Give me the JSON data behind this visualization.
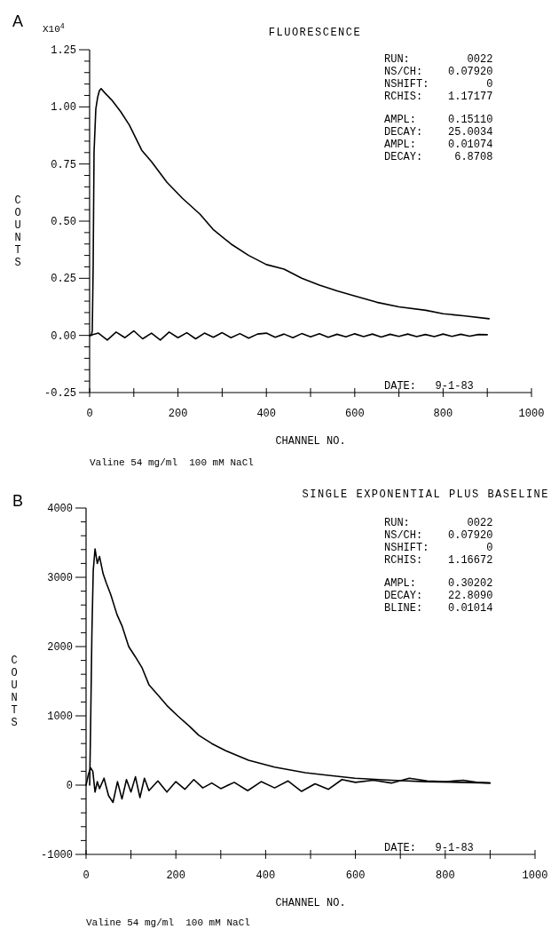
{
  "chart_data": [
    {
      "type": "line",
      "title": "FLUORESCENCE",
      "xlabel": "CHANNEL NO.",
      "ylabel": "COUNTS",
      "grid": false,
      "marker": "none",
      "line_style": "solid",
      "annotations": [
        "A",
        "X10$^{4}$",
        "RUN:         0022",
        "NS/CH:    0.07920",
        "NSHIFT:         0",
        "RCHIS:    1.17177",
        "AMPL:     0.15110",
        "DECAY:    25.0034",
        "AMPL:     0.01074",
        "DECAY:     6.8708",
        "DATE:   9-1-83",
        "Valine 54 mg/ml  100 mM NaCl"
      ],
      "xlim": [
        0,
        1000
      ],
      "xticks": [
        0,
        {
          "value": 100,
          "label": null
        },
        200,
        {
          "value": 300,
          "label": null
        },
        400,
        {
          "value": 500,
          "label": null
        },
        600,
        {
          "value": 700,
          "label": null
        },
        800,
        {
          "value": 900,
          "label": null
        },
        1000
      ],
      "ylim": [
        -0.25,
        1.25
      ],
      "yticks": [
        {
          "value": -0.25,
          "label": "-0.25"
        },
        {
          "value": -0.2,
          "label": null
        },
        {
          "value": -0.15,
          "label": null
        },
        {
          "value": -0.1,
          "label": null
        },
        {
          "value": -0.05,
          "label": null
        },
        {
          "value": 0,
          "label": "0.00"
        },
        {
          "value": 0.05,
          "label": null
        },
        {
          "value": 0.1,
          "label": null
        },
        {
          "value": 0.15,
          "label": null
        },
        {
          "value": 0.2,
          "label": null
        },
        {
          "value": 0.25,
          "label": "0.25"
        },
        {
          "value": 0.3,
          "label": null
        },
        {
          "value": 0.35,
          "label": null
        },
        {
          "value": 0.4,
          "label": null
        },
        {
          "value": 0.45,
          "label": null
        },
        {
          "value": 0.5,
          "label": "0.50"
        },
        {
          "value": 0.55,
          "label": null
        },
        {
          "value": 0.6,
          "label": null
        },
        {
          "value": 0.65,
          "label": null
        },
        {
          "value": 0.7,
          "label": null
        },
        {
          "value": 0.75,
          "label": "0.75"
        },
        {
          "value": 0.8,
          "label": null
        },
        {
          "value": 0.85,
          "label": null
        },
        {
          "value": 0.9,
          "label": null
        },
        {
          "value": 0.95,
          "label": null
        },
        {
          "value": 1,
          "label": "1.00"
        },
        {
          "value": 1.05,
          "label": null
        },
        {
          "value": 1.1,
          "label": null
        },
        {
          "value": 1.15,
          "label": null
        },
        {
          "value": 1.2,
          "label": null
        },
        {
          "value": 1.25,
          "label": "1.25"
        }
      ],
      "series": [
        {
          "color": "#000000",
          "x": [
            0,
            4,
            6,
            8,
            10,
            14,
            18,
            22,
            26,
            35,
            50,
            70,
            90,
            118,
            140,
            175,
            210,
            250,
            279,
            320,
            360,
            400,
            440,
            480,
            520,
            560,
            600,
            650,
            700,
            761,
            800,
            850,
            904
          ],
          "values": [
            0,
            0,
            0.02,
            0.3,
            0.8,
            0.99,
            1.04,
            1.07,
            1.08,
            1.06,
            1.03,
            0.98,
            0.92,
            0.81,
            0.76,
            0.67,
            0.6,
            0.53,
            0.465,
            0.4,
            0.35,
            0.31,
            0.29,
            0.25,
            0.22,
            0.195,
            0.173,
            0.145,
            0.125,
            0.11,
            0.095,
            0.085,
            0.073
          ]
        },
        {
          "color": "#000000",
          "x": [
            0,
            20,
            40,
            60,
            80,
            100,
            120,
            140,
            160,
            180,
            200,
            220,
            240,
            260,
            280,
            300,
            320,
            340,
            360,
            380,
            400,
            420,
            440,
            460,
            480,
            500,
            520,
            540,
            560,
            580,
            600,
            620,
            640,
            660,
            680,
            700,
            720,
            740,
            760,
            780,
            800,
            820,
            840,
            860,
            880,
            900
          ],
          "values": [
            0,
            0.01,
            -0.02,
            0.015,
            -0.01,
            0.02,
            -0.015,
            0.01,
            -0.02,
            0.015,
            -0.01,
            0.012,
            -0.015,
            0.01,
            -0.008,
            0.012,
            -0.01,
            0.008,
            -0.012,
            0.006,
            0.01,
            -0.008,
            0.006,
            -0.01,
            0.008,
            -0.006,
            0.007,
            -0.008,
            0.005,
            -0.006,
            0.007,
            -0.005,
            0.006,
            -0.007,
            0.005,
            -0.004,
            0.006,
            -0.005,
            0.004,
            -0.005,
            0.006,
            -0.004,
            0.005,
            -0.003,
            0.004,
            0.003
          ]
        }
      ]
    },
    {
      "type": "line",
      "title": "SINGLE EXPONENTIAL PLUS BASELINE",
      "xlabel": "CHANNEL NO.",
      "ylabel": "COUNTS",
      "grid": false,
      "marker": "none",
      "line_style": "solid",
      "annotations": [
        "B",
        "RUN:         0022",
        "NS/CH:    0.07920",
        "NSHIFT:         0",
        "RCHIS:    1.16672",
        "AMPL:     0.30202",
        "DECAY:    22.8090",
        "BLINE:    0.01014",
        "DATE:   9-1-83",
        "Valine 54 mg/ml  100 mM NaCl"
      ],
      "xlim": [
        0,
        1000
      ],
      "xticks": [
        0,
        {
          "value": 100,
          "label": null
        },
        200,
        {
          "value": 300,
          "label": null
        },
        400,
        {
          "value": 500,
          "label": null
        },
        600,
        {
          "value": 700,
          "label": null
        },
        800,
        {
          "value": 900,
          "label": null
        },
        1000
      ],
      "ylim": [
        -1000,
        4000
      ],
      "yticks": [
        -1000,
        {
          "value": -800,
          "label": null
        },
        {
          "value": -600,
          "label": null
        },
        {
          "value": -400,
          "label": null
        },
        {
          "value": -200,
          "label": null
        },
        0,
        {
          "value": 200,
          "label": null
        },
        {
          "value": 400,
          "label": null
        },
        {
          "value": 600,
          "label": null
        },
        {
          "value": 800,
          "label": null
        },
        1000,
        {
          "value": 1200,
          "label": null
        },
        {
          "value": 1400,
          "label": null
        },
        {
          "value": 1600,
          "label": null
        },
        {
          "value": 1800,
          "label": null
        },
        2000,
        {
          "value": 2200,
          "label": null
        },
        {
          "value": 2400,
          "label": null
        },
        {
          "value": 2600,
          "label": null
        },
        {
          "value": 2800,
          "label": null
        },
        3000,
        {
          "value": 3200,
          "label": null
        },
        {
          "value": 3400,
          "label": null
        },
        {
          "value": 3600,
          "label": null
        },
        {
          "value": 3800,
          "label": null
        },
        4000
      ],
      "series": [
        {
          "color": "#000000",
          "x": [
            8,
            10,
            13,
            16,
            20,
            25,
            30,
            38,
            45,
            55,
            69,
            80,
            95,
            110,
            125,
            140,
            160,
            180,
            204,
            230,
            251,
            280,
            310,
            362,
            420,
            488,
            540,
            599,
            680,
            757,
            830,
            899
          ],
          "values": [
            0,
            800,
            2200,
            3100,
            3410,
            3200,
            3300,
            3050,
            2920,
            2750,
            2460,
            2300,
            2000,
            1850,
            1690,
            1450,
            1300,
            1150,
            1000,
            850,
            720,
            600,
            500,
            360,
            260,
            180,
            140,
            100,
            70,
            50,
            40,
            30
          ]
        },
        {
          "color": "#000000",
          "x": [
            0,
            5,
            10,
            15,
            20,
            25,
            30,
            40,
            50,
            60,
            70,
            80,
            90,
            100,
            110,
            120,
            130,
            140,
            160,
            180,
            200,
            220,
            240,
            260,
            280,
            300,
            330,
            360,
            390,
            420,
            450,
            480,
            510,
            540,
            570,
            600,
            640,
            680,
            720,
            760,
            800,
            840,
            870,
            900
          ],
          "values": [
            0,
            150,
            250,
            200,
            -100,
            50,
            -50,
            100,
            -150,
            -250,
            50,
            -200,
            80,
            -100,
            120,
            -180,
            100,
            -80,
            60,
            -100,
            50,
            -60,
            80,
            -40,
            30,
            -50,
            40,
            -80,
            50,
            -40,
            60,
            -90,
            20,
            -60,
            80,
            40,
            70,
            30,
            100,
            60,
            50,
            70,
            40,
            30
          ]
        }
      ]
    }
  ]
}
